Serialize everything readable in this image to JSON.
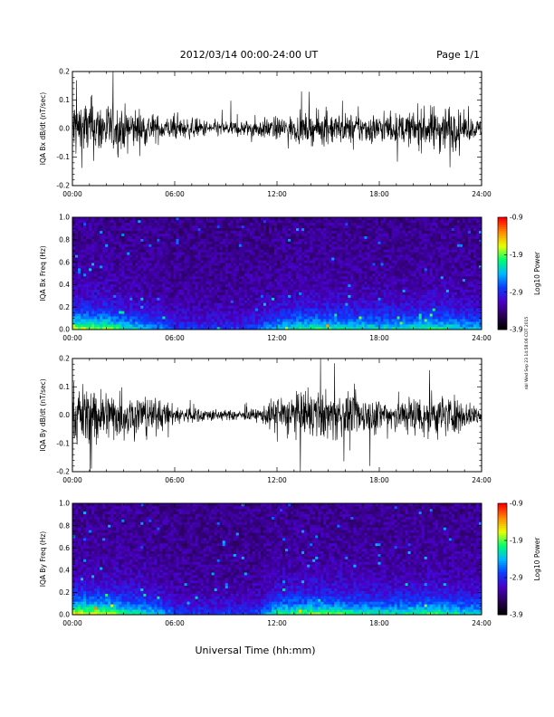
{
  "header": {
    "title": "2012/03/14  00:00-24:00 UT",
    "page": "Page 1/1"
  },
  "footer": {
    "xlabel": "Universal Time (hh:mm)",
    "stamp": "nbl Wed Sep 23 14:58:06 CDT 2015"
  },
  "colors": {
    "colorbar_stops": [
      "#000000",
      "#2a005a",
      "#4a00c8",
      "#0a3cff",
      "#00b8ff",
      "#00ff70",
      "#e8ff00",
      "#ff8c00",
      "#ff0000"
    ]
  },
  "chart_data": [
    {
      "type": "line",
      "ylabel": "IQA Bx dB/dt (nT/sec)",
      "ylim": [
        -0.2,
        0.2
      ],
      "yticks": [
        "-0.2",
        "-0.1",
        "0.0",
        "0.1",
        "0.2"
      ],
      "xlim": [
        "00:00",
        "24:00"
      ],
      "xticks": [
        "00:00",
        "06:00",
        "12:00",
        "18:00",
        "24:00"
      ],
      "series": [
        {
          "x": [
            0,
            1,
            2,
            3,
            4,
            5,
            6,
            7,
            8,
            9,
            10,
            11,
            12,
            13,
            14,
            15,
            16,
            17,
            18,
            19,
            20,
            21,
            22,
            23,
            24
          ],
          "amplitude": [
            0.2,
            0.18,
            0.16,
            0.13,
            0.12,
            0.08,
            0.07,
            0.06,
            0.05,
            0.05,
            0.05,
            0.06,
            0.07,
            0.08,
            0.09,
            0.1,
            0.09,
            0.09,
            0.09,
            0.09,
            0.1,
            0.13,
            0.16,
            0.08,
            0.05
          ]
        }
      ]
    },
    {
      "type": "heatmap",
      "ylabel": "IQA Bx Freq (Hz)",
      "ylim": [
        0.0,
        1.0
      ],
      "yticks": [
        "0.0",
        "0.2",
        "0.4",
        "0.6",
        "0.8",
        "1.0"
      ],
      "xlim": [
        "00:00",
        "24:00"
      ],
      "xticks": [
        "00:00",
        "06:00",
        "12:00",
        "18:00",
        "24:00"
      ],
      "colorbar": {
        "label": "Log10 Power",
        "range": [
          -3.9,
          -0.9
        ],
        "ticks": [
          "-0.9",
          "-1.9",
          "-2.9",
          "-3.9"
        ]
      },
      "activity_by_hour": [
        1.0,
        0.9,
        0.9,
        0.7,
        0.6,
        0.5,
        0.3,
        0.3,
        0.3,
        0.3,
        0.3,
        0.4,
        0.6,
        0.7,
        0.75,
        0.75,
        0.7,
        0.7,
        0.65,
        0.65,
        0.7,
        0.75,
        0.7,
        0.6
      ]
    },
    {
      "type": "line",
      "ylabel": "IQA By dB/dt (nT/sec)",
      "ylim": [
        -0.2,
        0.2
      ],
      "yticks": [
        "-0.2",
        "-0.1",
        "0.0",
        "0.1",
        "0.2"
      ],
      "xlim": [
        "00:00",
        "24:00"
      ],
      "xticks": [
        "00:00",
        "06:00",
        "12:00",
        "18:00",
        "24:00"
      ],
      "series": [
        {
          "x": [
            0,
            1,
            2,
            3,
            4,
            5,
            6,
            7,
            8,
            9,
            10,
            11,
            12,
            13,
            14,
            15,
            16,
            17,
            18,
            19,
            20,
            21,
            22,
            23,
            24
          ],
          "amplitude": [
            0.2,
            0.18,
            0.16,
            0.15,
            0.13,
            0.1,
            0.06,
            0.05,
            0.04,
            0.03,
            0.03,
            0.04,
            0.12,
            0.14,
            0.14,
            0.15,
            0.13,
            0.12,
            0.11,
            0.11,
            0.12,
            0.14,
            0.13,
            0.08,
            0.06
          ]
        }
      ]
    },
    {
      "type": "heatmap",
      "ylabel": "IQA By Freq (Hz)",
      "ylim": [
        0.0,
        1.0
      ],
      "yticks": [
        "0.0",
        "0.2",
        "0.4",
        "0.6",
        "0.8",
        "1.0"
      ],
      "xlim": [
        "00:00",
        "24:00"
      ],
      "xticks": [
        "00:00",
        "06:00",
        "12:00",
        "18:00",
        "24:00"
      ],
      "colorbar": {
        "label": "Log10 Power",
        "range": [
          -3.9,
          -0.9
        ],
        "ticks": [
          "-0.9",
          "-1.9",
          "-2.9",
          "-3.9"
        ]
      },
      "activity_by_hour": [
        1.0,
        1.0,
        0.95,
        0.8,
        0.7,
        0.6,
        0.35,
        0.3,
        0.3,
        0.3,
        0.3,
        0.35,
        0.75,
        0.8,
        0.85,
        0.85,
        0.8,
        0.75,
        0.7,
        0.7,
        0.75,
        0.8,
        0.75,
        0.65
      ]
    }
  ]
}
